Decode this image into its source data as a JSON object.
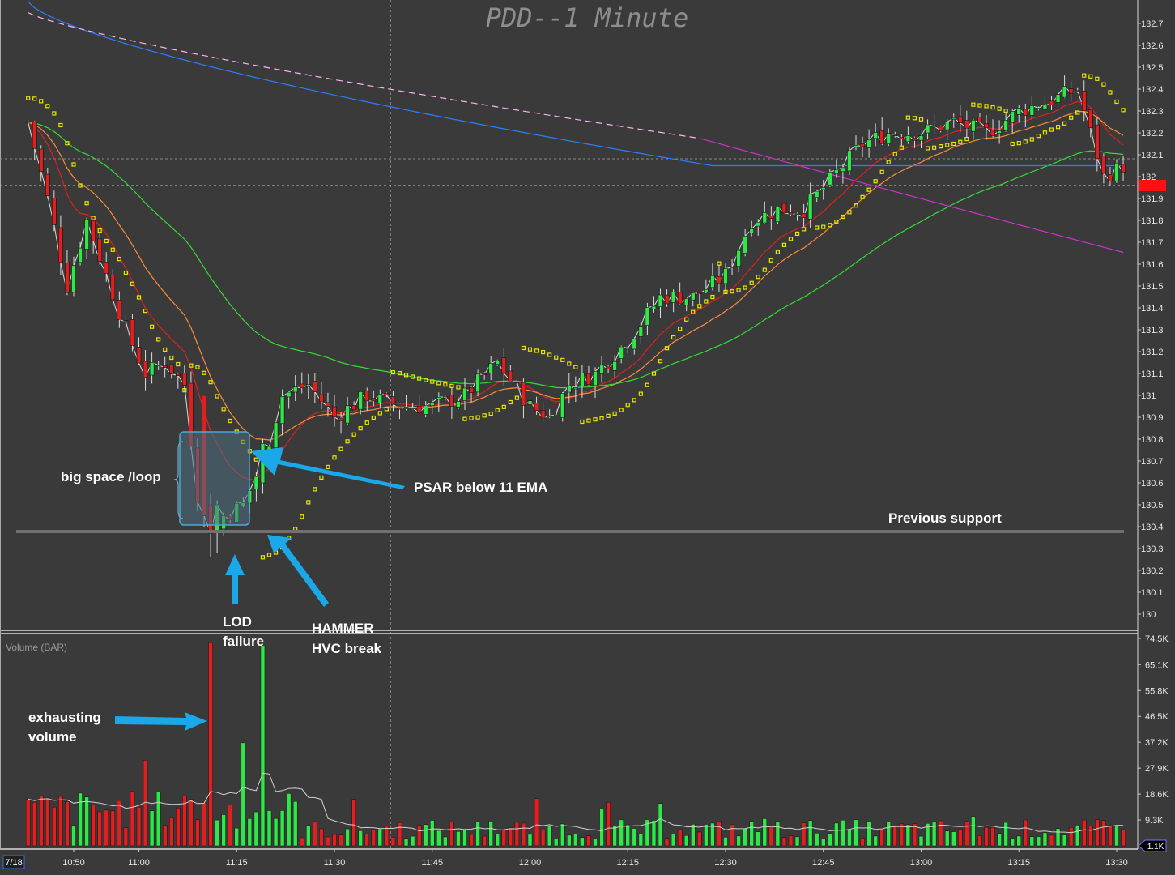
{
  "title": "PDD--1 Minute",
  "volume_title": "Volume (BAR)",
  "date_badge": "7/18",
  "last_price_marker": "132",
  "last_volume_marker": "1.1K",
  "colors": {
    "background": "#3a3a3a",
    "up_candle": "#2ee84a",
    "down_candle": "#e02020",
    "psar": "#e8e800",
    "ema_fast": "#e02020",
    "ema_orange": "#ff8a3a",
    "ema_green": "#33dd33",
    "vwap_blue": "#2a7fff",
    "ma_magenta": "#cc33cc",
    "ma_pink_dashed": "#ffb0f0",
    "annotation_arrow": "#1aa8e8",
    "support_line": "#707070"
  },
  "annotations": {
    "big_space": "big space /loop",
    "psar_below": "PSAR below 11 EMA",
    "previous_support": "Previous support",
    "lod_1": "LOD",
    "lod_2": "failure",
    "hammer_1": "HAMMER",
    "hammer_2": "HVC break",
    "exhausting_1": "exhausting",
    "exhausting_2": "volume"
  },
  "chart_data": [
    {
      "type": "candlestick",
      "title": "PDD--1 Minute",
      "x_ticks": [
        "10:50",
        "11:00",
        "11:15",
        "11:30",
        "11:45",
        "12:00",
        "12:15",
        "12:30",
        "12:45",
        "13:00",
        "13:15",
        "13:30"
      ],
      "y_ticks": [
        "132.7",
        "132.6",
        "132.5",
        "132.4",
        "132.3",
        "132.2",
        "132.1",
        "132",
        "131.9",
        "131.8",
        "131.7",
        "131.6",
        "131.5",
        "131.4",
        "131.3",
        "131.2",
        "131.1",
        "131",
        "130.9",
        "130.8",
        "130.7",
        "130.6",
        "130.5",
        "130.4",
        "130.3",
        "130.2",
        "130.1",
        "130"
      ],
      "ylim": [
        129.95,
        132.75
      ],
      "grid": false,
      "previous_support": 130.37,
      "session_low": 130.25,
      "approx_close_path": [
        {
          "t": "10:43",
          "price": 132.25
        },
        {
          "t": "10:46",
          "price": 131.9
        },
        {
          "t": "10:49",
          "price": 131.5
        },
        {
          "t": "10:52",
          "price": 131.8
        },
        {
          "t": "10:55",
          "price": 131.55
        },
        {
          "t": "10:58",
          "price": 131.3
        },
        {
          "t": "11:01",
          "price": 131.1
        },
        {
          "t": "11:04",
          "price": 131.15
        },
        {
          "t": "11:07",
          "price": 131.05
        },
        {
          "t": "11:09",
          "price": 130.55
        },
        {
          "t": "11:11",
          "price": 130.35
        },
        {
          "t": "11:13",
          "price": 130.45
        },
        {
          "t": "11:16",
          "price": 130.5
        },
        {
          "t": "11:19",
          "price": 130.7
        },
        {
          "t": "11:22",
          "price": 131.0
        },
        {
          "t": "11:26",
          "price": 131.05
        },
        {
          "t": "11:30",
          "price": 130.9
        },
        {
          "t": "11:35",
          "price": 131.0
        },
        {
          "t": "11:40",
          "price": 130.95
        },
        {
          "t": "11:45",
          "price": 130.95
        },
        {
          "t": "11:50",
          "price": 131.0
        },
        {
          "t": "11:55",
          "price": 131.15
        },
        {
          "t": "12:00",
          "price": 130.95
        },
        {
          "t": "12:03",
          "price": 130.9
        },
        {
          "t": "12:06",
          "price": 131.05
        },
        {
          "t": "12:10",
          "price": 131.1
        },
        {
          "t": "12:15",
          "price": 131.25
        },
        {
          "t": "12:20",
          "price": 131.45
        },
        {
          "t": "12:25",
          "price": 131.45
        },
        {
          "t": "12:30",
          "price": 131.55
        },
        {
          "t": "12:34",
          "price": 131.8
        },
        {
          "t": "12:38",
          "price": 131.85
        },
        {
          "t": "12:42",
          "price": 131.85
        },
        {
          "t": "12:45",
          "price": 131.95
        },
        {
          "t": "12:48",
          "price": 132.05
        },
        {
          "t": "12:51",
          "price": 132.15
        },
        {
          "t": "12:55",
          "price": 132.2
        },
        {
          "t": "13:00",
          "price": 132.2
        },
        {
          "t": "13:05",
          "price": 132.25
        },
        {
          "t": "13:10",
          "price": 132.2
        },
        {
          "t": "13:15",
          "price": 132.3
        },
        {
          "t": "13:20",
          "price": 132.35
        },
        {
          "t": "13:24",
          "price": 132.4
        },
        {
          "t": "13:26",
          "price": 132.2
        },
        {
          "t": "13:28",
          "price": 132.0
        },
        {
          "t": "13:31",
          "price": 132.05
        }
      ]
    },
    {
      "type": "bar",
      "title": "Volume (BAR)",
      "y_ticks": [
        "74.5K",
        "65.1K",
        "55.8K",
        "46.5K",
        "37.2K",
        "27.9K",
        "18.6K",
        "9.3K"
      ],
      "ylim": [
        0,
        74500
      ],
      "notable_bars": [
        {
          "t": "11:11",
          "volume": 73000,
          "color": "red"
        },
        {
          "t": "11:16",
          "volume": 37000,
          "color": "green"
        },
        {
          "t": "11:19",
          "volume": 72000,
          "color": "green"
        }
      ]
    }
  ]
}
